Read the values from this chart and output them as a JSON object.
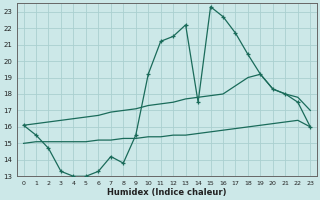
{
  "xlabel": "Humidex (Indice chaleur)",
  "bg_color": "#cce8e8",
  "grid_color": "#aad0d0",
  "line_color": "#1a6b5a",
  "xlim": [
    -0.5,
    23.5
  ],
  "ylim": [
    13,
    23.5
  ],
  "yticks": [
    13,
    14,
    15,
    16,
    17,
    18,
    19,
    20,
    21,
    22,
    23
  ],
  "xticks": [
    0,
    1,
    2,
    3,
    4,
    5,
    6,
    7,
    8,
    9,
    10,
    11,
    12,
    13,
    14,
    15,
    16,
    17,
    18,
    19,
    20,
    21,
    22,
    23
  ],
  "main_x": [
    0,
    1,
    2,
    3,
    4,
    5,
    6,
    7,
    8,
    9,
    10,
    11,
    12,
    13,
    14,
    15,
    16,
    17,
    18,
    19,
    20,
    21,
    22,
    23
  ],
  "main_y": [
    16.1,
    15.5,
    14.7,
    13.3,
    13.0,
    13.0,
    13.3,
    14.2,
    13.8,
    15.5,
    19.2,
    21.2,
    21.5,
    22.2,
    17.5,
    23.3,
    22.7,
    21.7,
    20.4,
    19.2,
    18.3,
    18.0,
    17.5,
    16.0
  ],
  "upper_x": [
    0,
    1,
    2,
    3,
    4,
    5,
    6,
    7,
    8,
    9,
    10,
    11,
    12,
    13,
    14,
    15,
    16,
    17,
    18,
    19,
    20,
    21,
    22,
    23
  ],
  "upper_y": [
    16.1,
    16.2,
    16.3,
    16.4,
    16.5,
    16.6,
    16.7,
    16.9,
    17.0,
    17.1,
    17.3,
    17.4,
    17.5,
    17.7,
    17.8,
    17.9,
    18.0,
    18.5,
    19.0,
    19.2,
    18.3,
    18.0,
    17.8,
    17.0
  ],
  "lower_x": [
    0,
    1,
    2,
    3,
    4,
    5,
    6,
    7,
    8,
    9,
    10,
    11,
    12,
    13,
    14,
    15,
    16,
    17,
    18,
    19,
    20,
    21,
    22,
    23
  ],
  "lower_y": [
    15.0,
    15.1,
    15.1,
    15.1,
    15.1,
    15.1,
    15.2,
    15.2,
    15.3,
    15.3,
    15.4,
    15.4,
    15.5,
    15.5,
    15.6,
    15.7,
    15.8,
    15.9,
    16.0,
    16.1,
    16.2,
    16.3,
    16.4,
    16.0
  ]
}
